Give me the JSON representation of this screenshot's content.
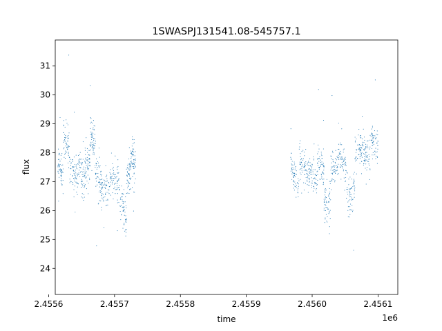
{
  "chart_data": {
    "type": "scatter",
    "title": "1SWASPJ131541.08-545757.1",
    "xlabel": "time",
    "ylabel": "flux",
    "x_offset_label": "1e6",
    "xlim": [
      2.45561,
      2.45613
    ],
    "ylim": [
      23.1,
      31.9
    ],
    "x_ticks": [
      2.4556,
      2.4557,
      2.4558,
      2.4559,
      2.456,
      2.4561
    ],
    "x_tick_labels": [
      "2.4556",
      "2.4557",
      "2.4558",
      "2.4559",
      "2.4560",
      "2.4561"
    ],
    "y_ticks": [
      24,
      25,
      26,
      27,
      28,
      29,
      30,
      31
    ],
    "y_tick_labels": [
      "24",
      "25",
      "26",
      "27",
      "28",
      "29",
      "30",
      "31"
    ],
    "grid": false,
    "legend": "none",
    "marker_color": "#1f77b4",
    "series": [
      {
        "segments": [
          {
            "x0": 2.455614,
            "x1": 2.455622,
            "y0": 27.7,
            "y1": 27.3
          },
          {
            "x0": 2.455622,
            "x1": 2.455632,
            "y0": 28.5,
            "y1": 28.1
          },
          {
            "x0": 2.455632,
            "x1": 2.455645,
            "y0": 27.3,
            "y1": 27.2
          },
          {
            "x0": 2.455645,
            "x1": 2.455655,
            "y0": 27.6,
            "y1": 27.0
          },
          {
            "x0": 2.455655,
            "x1": 2.455663,
            "y0": 27.4,
            "y1": 27.8
          },
          {
            "x0": 2.455663,
            "x1": 2.45567,
            "y0": 28.7,
            "y1": 28.3
          },
          {
            "x0": 2.45567,
            "x1": 2.45568,
            "y0": 27.4,
            "y1": 27.0
          },
          {
            "x0": 2.45568,
            "x1": 2.455693,
            "y0": 26.7,
            "y1": 26.8
          },
          {
            "x0": 2.455693,
            "x1": 2.455708,
            "y0": 27.1,
            "y1": 26.9
          },
          {
            "x0": 2.455708,
            "x1": 2.455718,
            "y0": 26.4,
            "y1": 25.6
          },
          {
            "x0": 2.455718,
            "x1": 2.455725,
            "y0": 27.1,
            "y1": 27.4
          },
          {
            "x0": 2.455725,
            "x1": 2.455732,
            "y0": 27.9,
            "y1": 27.6
          },
          {
            "x0": 2.455967,
            "x1": 2.45598,
            "y0": 27.7,
            "y1": 26.5
          },
          {
            "x0": 2.45598,
            "x1": 2.455995,
            "y0": 27.8,
            "y1": 27.2
          },
          {
            "x0": 2.455995,
            "x1": 2.456008,
            "y0": 27.3,
            "y1": 27.1
          },
          {
            "x0": 2.456008,
            "x1": 2.456018,
            "y0": 27.8,
            "y1": 27.3
          },
          {
            "x0": 2.456018,
            "x1": 2.456028,
            "y0": 26.2,
            "y1": 26.4
          },
          {
            "x0": 2.456028,
            "x1": 2.45604,
            "y0": 27.4,
            "y1": 27.6
          },
          {
            "x0": 2.45604,
            "x1": 2.456052,
            "y0": 28.0,
            "y1": 27.4
          },
          {
            "x0": 2.456052,
            "x1": 2.456065,
            "y0": 26.5,
            "y1": 26.8
          },
          {
            "x0": 2.456065,
            "x1": 2.456078,
            "y0": 27.9,
            "y1": 28.2
          },
          {
            "x0": 2.456078,
            "x1": 2.456088,
            "y0": 28.0,
            "y1": 27.8
          },
          {
            "x0": 2.456088,
            "x1": 2.4561,
            "y0": 28.4,
            "y1": 28.2
          }
        ]
      }
    ]
  }
}
